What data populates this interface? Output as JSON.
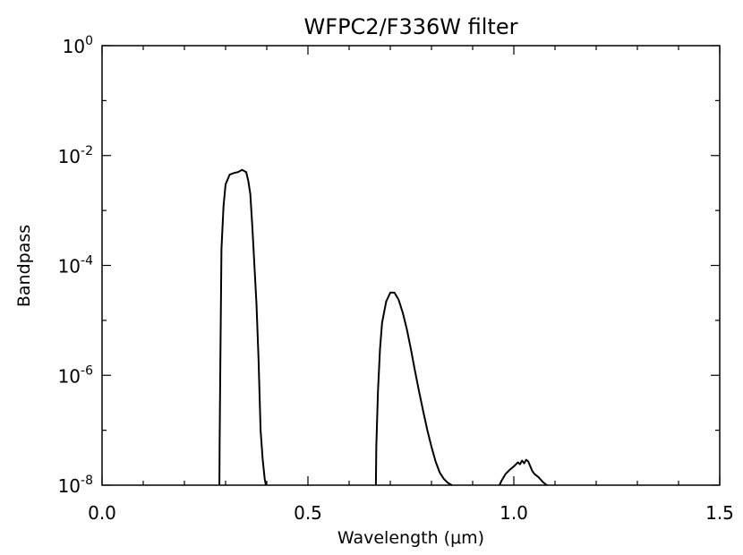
{
  "chart_data": {
    "type": "line",
    "title": "WFPC2/F336W filter",
    "xlabel": "Wavelength (μm)",
    "ylabel": "Bandpass",
    "xlim": [
      0.0,
      1.5
    ],
    "ylim": [
      1e-08,
      1
    ],
    "yscale": "log",
    "grid": false,
    "x_major_ticks": [
      "0.0",
      "0.5",
      "1.0",
      "1.5"
    ],
    "y_major_ticks": [
      {
        "base": "10",
        "exp": "0"
      },
      {
        "base": "10",
        "exp": "-2"
      },
      {
        "base": "10",
        "exp": "-4"
      },
      {
        "base": "10",
        "exp": "-6"
      },
      {
        "base": "10",
        "exp": "-8"
      }
    ],
    "series": [
      {
        "color": "#000000",
        "x": [
          0.285,
          0.2855,
          0.287,
          0.29,
          0.295,
          0.3,
          0.31,
          0.32,
          0.33,
          0.34,
          0.35,
          0.355,
          0.36,
          0.365,
          0.37,
          0.375,
          0.38,
          0.385,
          0.39,
          0.395,
          0.398,
          0.665,
          0.666,
          0.67,
          0.675,
          0.68,
          0.69,
          0.7,
          0.71,
          0.72,
          0.73,
          0.74,
          0.75,
          0.76,
          0.77,
          0.78,
          0.79,
          0.8,
          0.81,
          0.82,
          0.83,
          0.84,
          0.85,
          0.965,
          0.97,
          0.98,
          0.99,
          1.0,
          1.01,
          1.015,
          1.02,
          1.025,
          1.03,
          1.035,
          1.04,
          1.045,
          1.05,
          1.06,
          1.07,
          1.08
        ],
        "y": [
          1e-08,
          5e-08,
          1e-06,
          0.0002,
          0.0012,
          0.003,
          0.0045,
          0.0048,
          0.005,
          0.0055,
          0.005,
          0.0035,
          0.002,
          0.0005,
          0.0001,
          2e-05,
          2e-06,
          1e-07,
          3e-08,
          1.3e-08,
          1e-08,
          1e-08,
          5e-08,
          5e-07,
          3e-06,
          9e-06,
          2.2e-05,
          3.2e-05,
          3.2e-05,
          2.4e-05,
          1.4e-05,
          7e-06,
          3e-06,
          1.2e-06,
          5e-07,
          2.2e-07,
          1e-07,
          5e-08,
          2.7e-08,
          1.7e-08,
          1.3e-08,
          1.1e-08,
          1e-08,
          1e-08,
          1.2e-08,
          1.6e-08,
          1.9e-08,
          2.2e-08,
          2.6e-08,
          2.4e-08,
          2.8e-08,
          2.5e-08,
          2.9e-08,
          2.7e-08,
          2.2e-08,
          1.8e-08,
          1.6e-08,
          1.4e-08,
          1.15e-08,
          1e-08
        ]
      }
    ]
  }
}
